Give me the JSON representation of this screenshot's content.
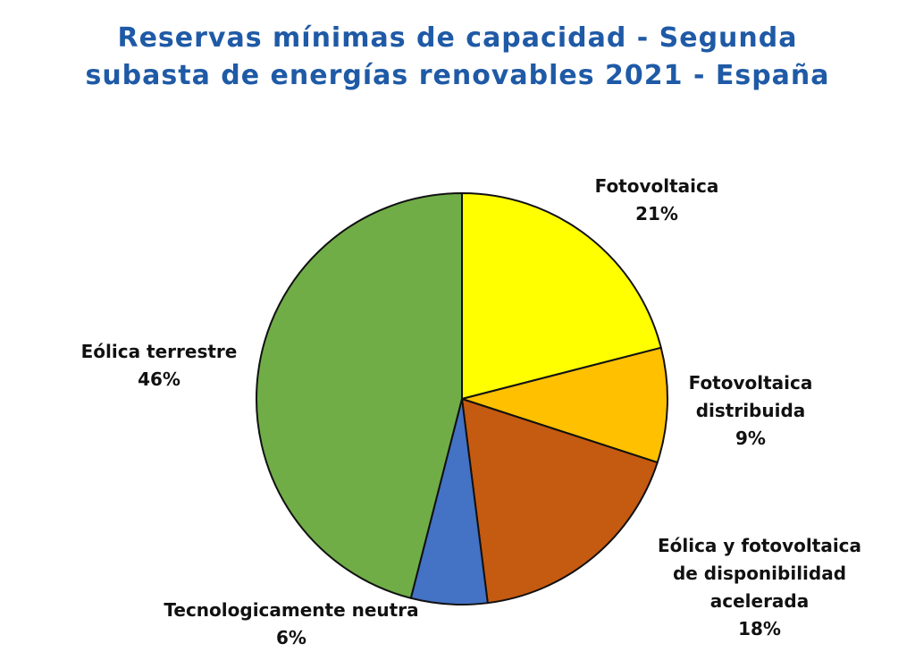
{
  "chart_data": {
    "type": "pie",
    "title": "Reservas mínimas de capacidad - Segunda subasta de energías renovables 2021 - España",
    "legend": "none (data labels beside slices)",
    "slices": [
      {
        "name": "Fotovoltaica",
        "label_lines": [
          "Fotovoltaica"
        ],
        "value": 21,
        "value_label": "21%",
        "color": "#ffff00"
      },
      {
        "name": "Fotovoltaica distribuida",
        "label_lines": [
          "Fotovoltaica",
          "distribuida"
        ],
        "value": 9,
        "value_label": "9%",
        "color": "#ffc000"
      },
      {
        "name": "Eólica y fotovoltaica de disponibilidad acelerada",
        "label_lines": [
          "Eólica y fotovoltaica",
          "de disponibilidad",
          "acelerada"
        ],
        "value": 18,
        "value_label": "18%",
        "color": "#c55a11"
      },
      {
        "name": "Tecnologicamente neutra",
        "label_lines": [
          "Tecnologicamente neutra"
        ],
        "value": 6,
        "value_label": "6%",
        "color": "#4472c4"
      },
      {
        "name": "Eólica terrestre",
        "label_lines": [
          "Eólica terrestre"
        ],
        "value": 46,
        "value_label": "46%",
        "color": "#70ad47"
      }
    ]
  }
}
